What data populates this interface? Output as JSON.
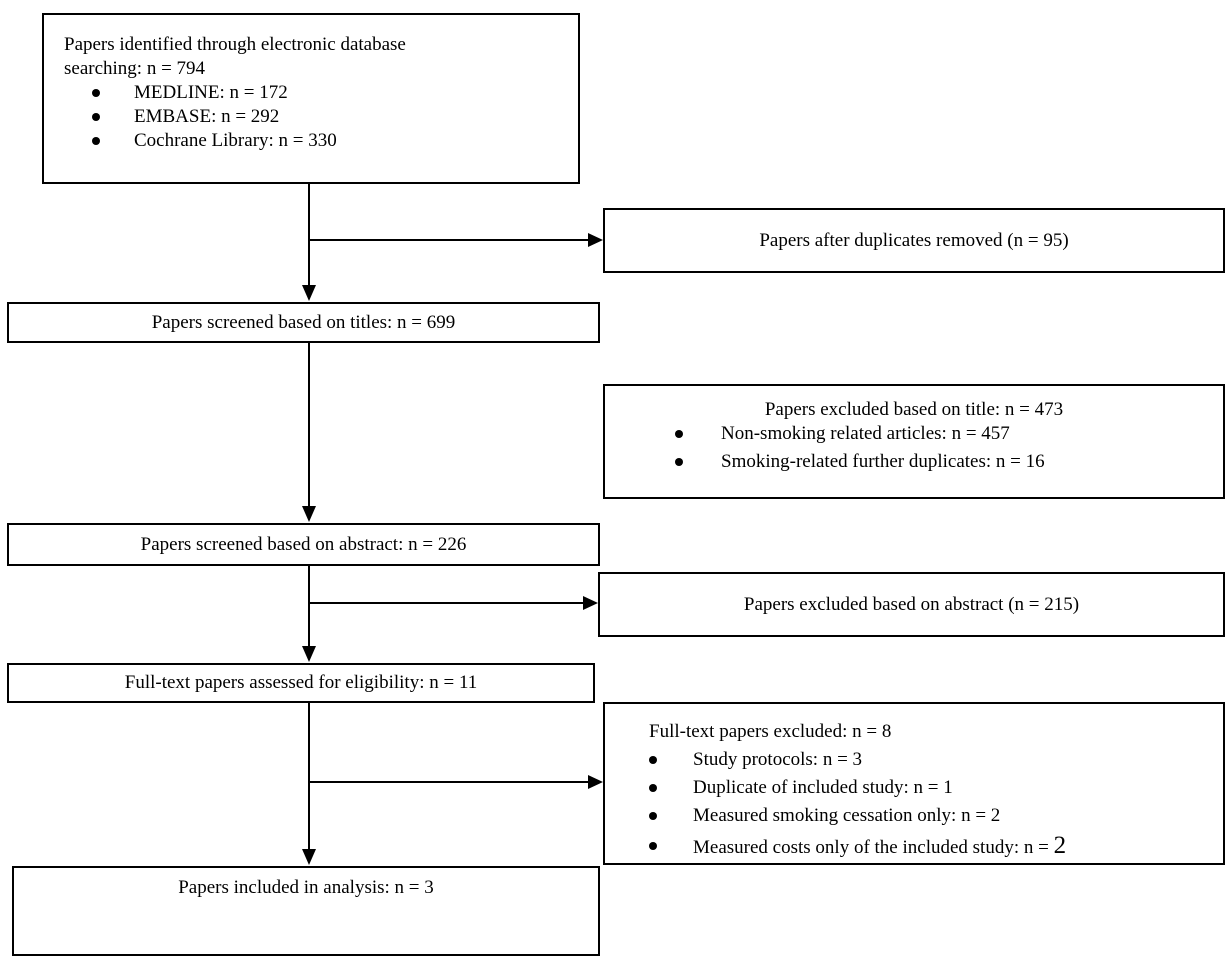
{
  "identified": {
    "line1": "Papers identified through electronic database",
    "line2": "searching: n = 794",
    "items": [
      "MEDLINE: n = 172",
      "EMBASE: n = 292",
      "Cochrane Library: n = 330"
    ]
  },
  "duplicates_removed": "Papers after duplicates removed (n = 95)",
  "screened_titles": "Papers screened based on titles: n = 699",
  "excluded_title": {
    "heading": "Papers excluded based on title: n = 473",
    "items": [
      "Non-smoking related articles: n = 457",
      "Smoking-related further duplicates: n = 16"
    ]
  },
  "screened_abstract": "Papers screened based on abstract: n = 226",
  "excluded_abstract": "Papers excluded based on abstract (n = 215)",
  "full_text_assessed": "Full-text papers assessed for eligibility: n = 11",
  "full_text_excluded": {
    "heading": "Full-text papers excluded: n = 8",
    "items": [
      "Study protocols: n = 3",
      "Duplicate of included study: n = 1",
      "Measured smoking cessation only: n = 2",
      "Measured costs only of the included study: n = "
    ],
    "last_value": "2"
  },
  "included": "Papers included in analysis: n = 3"
}
